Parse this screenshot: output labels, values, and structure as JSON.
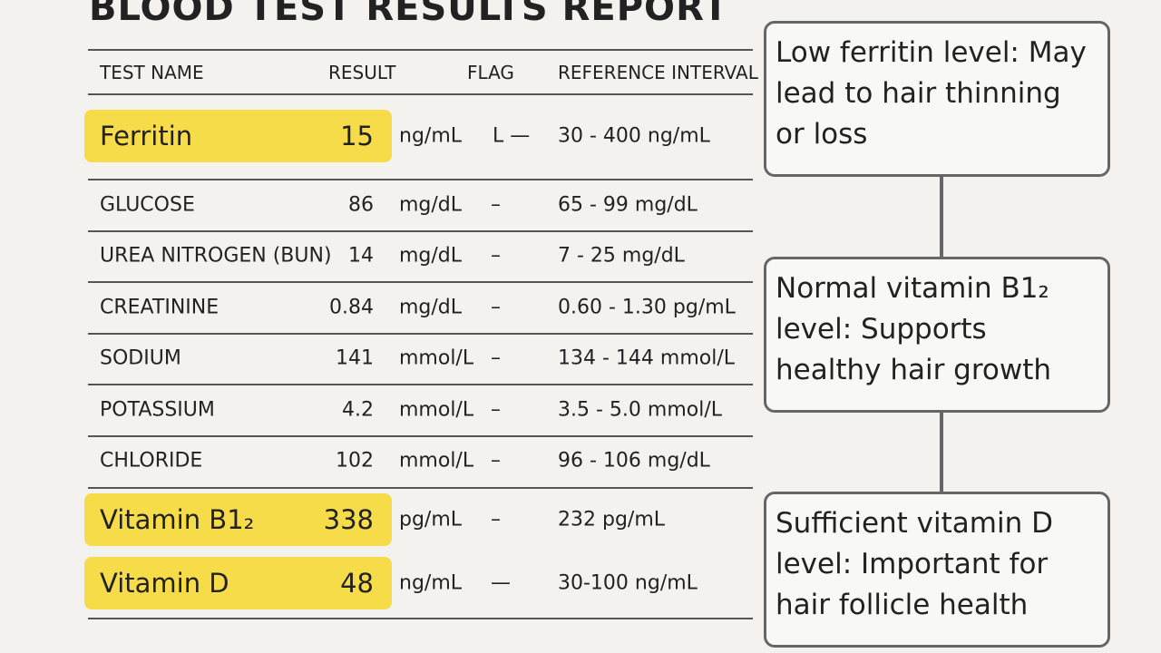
{
  "title": "BLOOD TEST RESULTS REPORT",
  "table": {
    "header": [
      "TEST NAME",
      "RESULT",
      "FLAG",
      "REFERENCE INTERVAL"
    ],
    "rows": [
      {
        "name": "Ferritin",
        "result": "15",
        "unit": "ng/mL",
        "flag": "L —",
        "reference": "30 - 400 ng/mL",
        "highlight": true
      },
      {
        "name": "GLUCOSE",
        "result": "86",
        "unit": "mg/dL",
        "flag": "–",
        "reference": "65 - 99 mg/dL",
        "highlight": false
      },
      {
        "name": "UREA NITROGEN (BUN)",
        "result": "14",
        "unit": "mg/dL",
        "flag": "–",
        "reference": "7 - 25 mg/dL",
        "highlight": false
      },
      {
        "name": "CREATININE",
        "result": "0.84",
        "unit": "mg/dL",
        "flag": "–",
        "reference": "0.60 - 1.30 pg/mL",
        "highlight": false
      },
      {
        "name": "SODIUM",
        "result": "141",
        "unit": "mmol/L",
        "flag": "–",
        "reference": "134 - 144 mmol/L",
        "highlight": false
      },
      {
        "name": "POTASSIUM",
        "result": "4.2",
        "unit": "mmol/L",
        "flag": "–",
        "reference": "3.5 - 5.0 mmol/L",
        "highlight": false
      },
      {
        "name": "CHLORIDE",
        "result": "102",
        "unit": "mmol/L",
        "flag": "–",
        "reference": "96 - 106 mg/dL",
        "highlight": false
      },
      {
        "name": "Vitamin B1₂",
        "result": "338",
        "unit": "pg/mL",
        "flag": "–",
        "reference": "232 pg/mL",
        "highlight": true
      },
      {
        "name": "Vitamin D",
        "result": "48",
        "unit": "ng/mL",
        "flag": "—",
        "reference": "30-100 ng/mL",
        "highlight": true
      }
    ]
  },
  "callouts": [
    "Low ferritin level: May lead to hair thinning or loss",
    "Normal vitamin B1₂ level: Supports healthy hair growth",
    "Sufficient vitamin D level: Important for hair follicle health"
  ]
}
